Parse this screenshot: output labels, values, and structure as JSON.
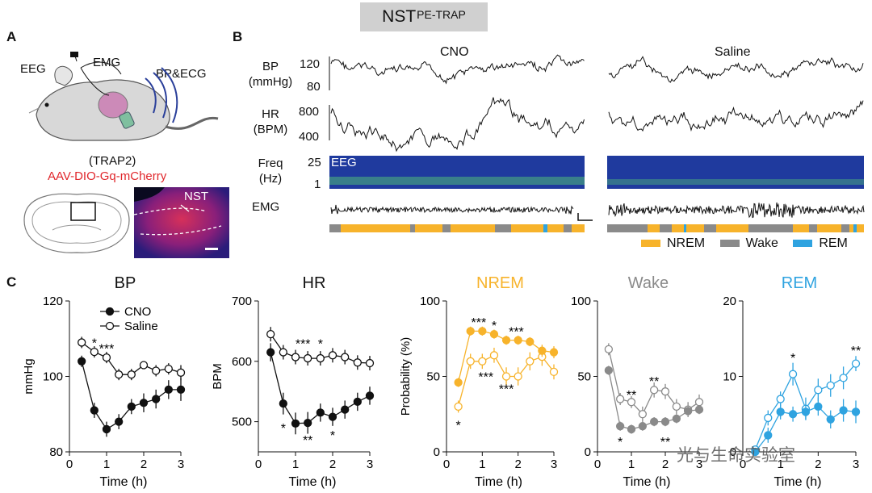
{
  "figure_title": "NST",
  "figure_title_sup": "PE-TRAP",
  "panels": {
    "A": {
      "letter": "A",
      "labels": {
        "eeg": "EEG",
        "emg": "EMG",
        "bp_ecg": "BP&ECG",
        "trap": "(TRAP2)",
        "virus": "AAV-DIO-Gq-mCherry",
        "nst": "NST"
      }
    },
    "B": {
      "letter": "B",
      "conditions": [
        "CNO",
        "Saline"
      ],
      "rows": {
        "bp": {
          "label1": "BP",
          "label2": "(mmHg)",
          "ticks": [
            "120",
            "80"
          ]
        },
        "hr": {
          "label1": "HR",
          "label2": "(BPM)",
          "ticks": [
            "800",
            "400"
          ]
        },
        "freq": {
          "label1": "Freq",
          "label2": "(Hz)",
          "ticks": [
            "25",
            "1"
          ],
          "inset": "EEG"
        },
        "emg": {
          "label": "EMG"
        }
      },
      "legend": [
        {
          "label": "NREM",
          "color": "#f7b32b"
        },
        {
          "label": "Wake",
          "color": "#8a8a8a"
        },
        {
          "label": "REM",
          "color": "#2fa3e0"
        }
      ]
    },
    "C": {
      "letter": "C"
    }
  },
  "colors": {
    "nrem": "#f7b32b",
    "wake": "#8a8a8a",
    "rem": "#2fa3e0",
    "black": "#111111"
  },
  "watermark": "光与生命实验室",
  "chart_data": [
    {
      "type": "line",
      "title": "BP",
      "xlabel": "Time (h)",
      "ylabel": "mmHg",
      "ylim": [
        80,
        120
      ],
      "yticks": [
        80,
        100,
        120
      ],
      "xticks": [
        0,
        1,
        2,
        3
      ],
      "x": [
        0.33,
        0.67,
        1.0,
        1.33,
        1.67,
        2.0,
        2.33,
        2.67,
        3.0
      ],
      "legend": [
        "CNO",
        "Saline"
      ],
      "series": [
        {
          "name": "CNO",
          "color": "#111111",
          "filled": true,
          "values": [
            104,
            91,
            86,
            88,
            92,
            93,
            94,
            96.5,
            96.5
          ],
          "err": [
            1.5,
            2,
            2,
            2,
            2,
            2.5,
            2.5,
            2.5,
            3
          ]
        },
        {
          "name": "Saline",
          "color": "#111111",
          "filled": false,
          "values": [
            109,
            106.5,
            105,
            100.5,
            100.5,
            103,
            101.5,
            102,
            101
          ],
          "err": [
            1.5,
            1.5,
            1.5,
            1.5,
            1.5,
            1,
            1.5,
            1.5,
            2
          ]
        }
      ],
      "annotations": [
        {
          "text": "*",
          "x": 0.67,
          "y": 109
        },
        {
          "text": "***",
          "x": 1.0,
          "y": 107.5
        }
      ]
    },
    {
      "type": "line",
      "title": "HR",
      "xlabel": "Time (h)",
      "ylabel": "BPM",
      "ylim": [
        450,
        700
      ],
      "yticks": [
        500,
        600,
        700
      ],
      "xticks": [
        0,
        1,
        2,
        3
      ],
      "x": [
        0.33,
        0.67,
        1.0,
        1.33,
        1.67,
        2.0,
        2.33,
        2.67,
        3.0
      ],
      "series": [
        {
          "name": "CNO",
          "color": "#111111",
          "filled": true,
          "values": [
            615,
            530,
            497,
            498,
            515,
            508,
            520,
            533,
            543
          ],
          "err": [
            15,
            18,
            18,
            18,
            15,
            15,
            15,
            15,
            15
          ]
        },
        {
          "name": "Saline",
          "color": "#111111",
          "filled": false,
          "values": [
            645,
            615,
            607,
            605,
            605,
            610,
            607,
            598,
            597
          ],
          "err": [
            12,
            12,
            12,
            12,
            12,
            12,
            12,
            12,
            12
          ]
        }
      ],
      "annotations": [
        {
          "text": "***",
          "x": 1.2,
          "y": 630
        },
        {
          "text": "*",
          "x": 1.67,
          "y": 630
        },
        {
          "text": "*",
          "x": 0.67,
          "y": 490
        },
        {
          "text": "**",
          "x": 1.33,
          "y": 470
        },
        {
          "text": "*",
          "x": 2.0,
          "y": 478
        }
      ]
    },
    {
      "type": "line",
      "title": "NREM",
      "xlabel": "Time (h)",
      "ylabel": "Probability (%)",
      "ylim": [
        0,
        100
      ],
      "yticks": [
        0,
        50,
        100
      ],
      "xticks": [
        0,
        1,
        2,
        3
      ],
      "x": [
        0.33,
        0.67,
        1.0,
        1.33,
        1.67,
        2.0,
        2.33,
        2.67,
        3.0
      ],
      "series": [
        {
          "name": "CNO",
          "color": "#f7b32b",
          "filled": true,
          "values": [
            46,
            80,
            80,
            78,
            74,
            74,
            73,
            67,
            66
          ],
          "err": [
            3,
            3,
            3,
            3,
            3,
            3,
            3,
            4,
            4
          ]
        },
        {
          "name": "Saline",
          "color": "#f7b32b",
          "filled": false,
          "values": [
            30,
            60,
            60,
            64,
            50,
            50,
            60,
            63,
            53
          ],
          "err": [
            4,
            5,
            5,
            5,
            6,
            6,
            6,
            6,
            5
          ]
        }
      ],
      "annotations": [
        {
          "text": "***",
          "x": 0.9,
          "y": 86
        },
        {
          "text": "*",
          "x": 1.33,
          "y": 84
        },
        {
          "text": "***",
          "x": 1.95,
          "y": 80
        },
        {
          "text": "***",
          "x": 1.1,
          "y": 50
        },
        {
          "text": "***",
          "x": 1.67,
          "y": 42
        },
        {
          "text": "*",
          "x": 0.33,
          "y": 18
        }
      ]
    },
    {
      "type": "line",
      "title": "Wake",
      "xlabel": "Time (h)",
      "ylabel": "",
      "ylim": [
        0,
        100
      ],
      "yticks": [
        0,
        50,
        100
      ],
      "xticks": [
        0,
        1,
        2,
        3
      ],
      "x": [
        0.33,
        0.67,
        1.0,
        1.33,
        1.67,
        2.0,
        2.33,
        2.67,
        3.0
      ],
      "series": [
        {
          "name": "CNO",
          "color": "#8a8a8a",
          "filled": true,
          "values": [
            54,
            17,
            15,
            17,
            20,
            20,
            22,
            27,
            28
          ],
          "err": [
            3,
            3,
            3,
            3,
            3,
            3,
            3,
            3,
            3
          ]
        },
        {
          "name": "Saline",
          "color": "#8a8a8a",
          "filled": false,
          "values": [
            68,
            35,
            33,
            25,
            41,
            40,
            30,
            28,
            33
          ],
          "err": [
            4,
            4,
            4,
            5,
            5,
            5,
            5,
            5,
            5
          ]
        }
      ],
      "annotations": [
        {
          "text": "**",
          "x": 1.0,
          "y": 38
        },
        {
          "text": "**",
          "x": 1.67,
          "y": 47
        },
        {
          "text": "*",
          "x": 0.67,
          "y": 7
        },
        {
          "text": "**",
          "x": 2.0,
          "y": 7
        }
      ]
    },
    {
      "type": "line",
      "title": "REM",
      "xlabel": "Time (h)",
      "ylabel": "",
      "ylim": [
        0,
        20
      ],
      "yticks": [
        0,
        10,
        20
      ],
      "xticks": [
        0,
        1,
        2,
        3
      ],
      "x": [
        0.33,
        0.67,
        1.0,
        1.33,
        1.67,
        2.0,
        2.33,
        2.67,
        3.0
      ],
      "series": [
        {
          "name": "CNO",
          "color": "#2fa3e0",
          "filled": true,
          "values": [
            0,
            2.2,
            5.3,
            5.0,
            5.3,
            6.0,
            4.3,
            5.5,
            5.3
          ],
          "err": [
            0.5,
            1,
            1,
            1,
            1,
            1.2,
            1.2,
            1.5,
            1.5
          ]
        },
        {
          "name": "Saline",
          "color": "#2fa3e0",
          "filled": false,
          "values": [
            0.3,
            4.5,
            7.0,
            10.3,
            5.7,
            8.2,
            8.8,
            9.8,
            11.7
          ],
          "err": [
            0.5,
            1,
            1,
            1.5,
            1.5,
            1.5,
            1.5,
            1.5,
            1
          ]
        }
      ],
      "annotations": [
        {
          "text": "*",
          "x": 1.33,
          "y": 12.5
        },
        {
          "text": "**",
          "x": 3.0,
          "y": 13.5
        }
      ]
    }
  ]
}
